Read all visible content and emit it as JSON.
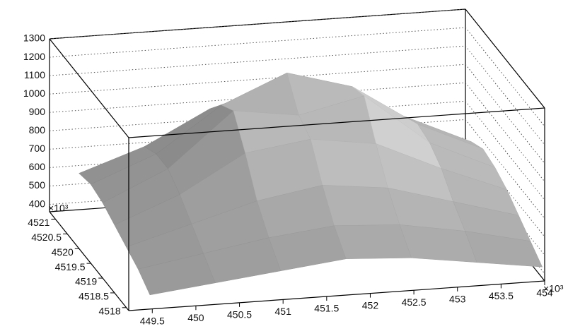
{
  "chart_data": {
    "type": "surface",
    "x": [
      449.5,
      450.25,
      451,
      451.75,
      452.5,
      453.25,
      454
    ],
    "y": [
      4518,
      4518.5,
      4519,
      4519.5,
      4520,
      4520.5,
      4521
    ],
    "z": [
      [
        420,
        460,
        500,
        540,
        520,
        470,
        420
      ],
      [
        480,
        540,
        600,
        640,
        620,
        560,
        480
      ],
      [
        520,
        620,
        720,
        780,
        740,
        640,
        540
      ],
      [
        560,
        700,
        900,
        950,
        900,
        740,
        600
      ],
      [
        600,
        760,
        1050,
        1000,
        1080,
        800,
        640
      ],
      [
        620,
        760,
        1000,
        1150,
        1050,
        820,
        660
      ],
      [
        600,
        720,
        900,
        1000,
        950,
        780,
        620
      ]
    ],
    "xlim": [
      449.23,
      454.0
    ],
    "ylim": [
      4517.9,
      4521.25
    ],
    "zlim": [
      360,
      1300
    ],
    "xticks": [
      449.5,
      450,
      450.5,
      451,
      451.5,
      452,
      452.5,
      453,
      453.5,
      454
    ],
    "yticks": [
      4518,
      4518.5,
      4519,
      4519.5,
      4520,
      4520.5,
      4521
    ],
    "zticks": [
      400,
      500,
      600,
      700,
      800,
      900,
      1000,
      1100,
      1200,
      1300
    ],
    "x_multiplier": "×10³",
    "y_multiplier": "×10³",
    "grid": true,
    "color": "#9a9a9a"
  }
}
